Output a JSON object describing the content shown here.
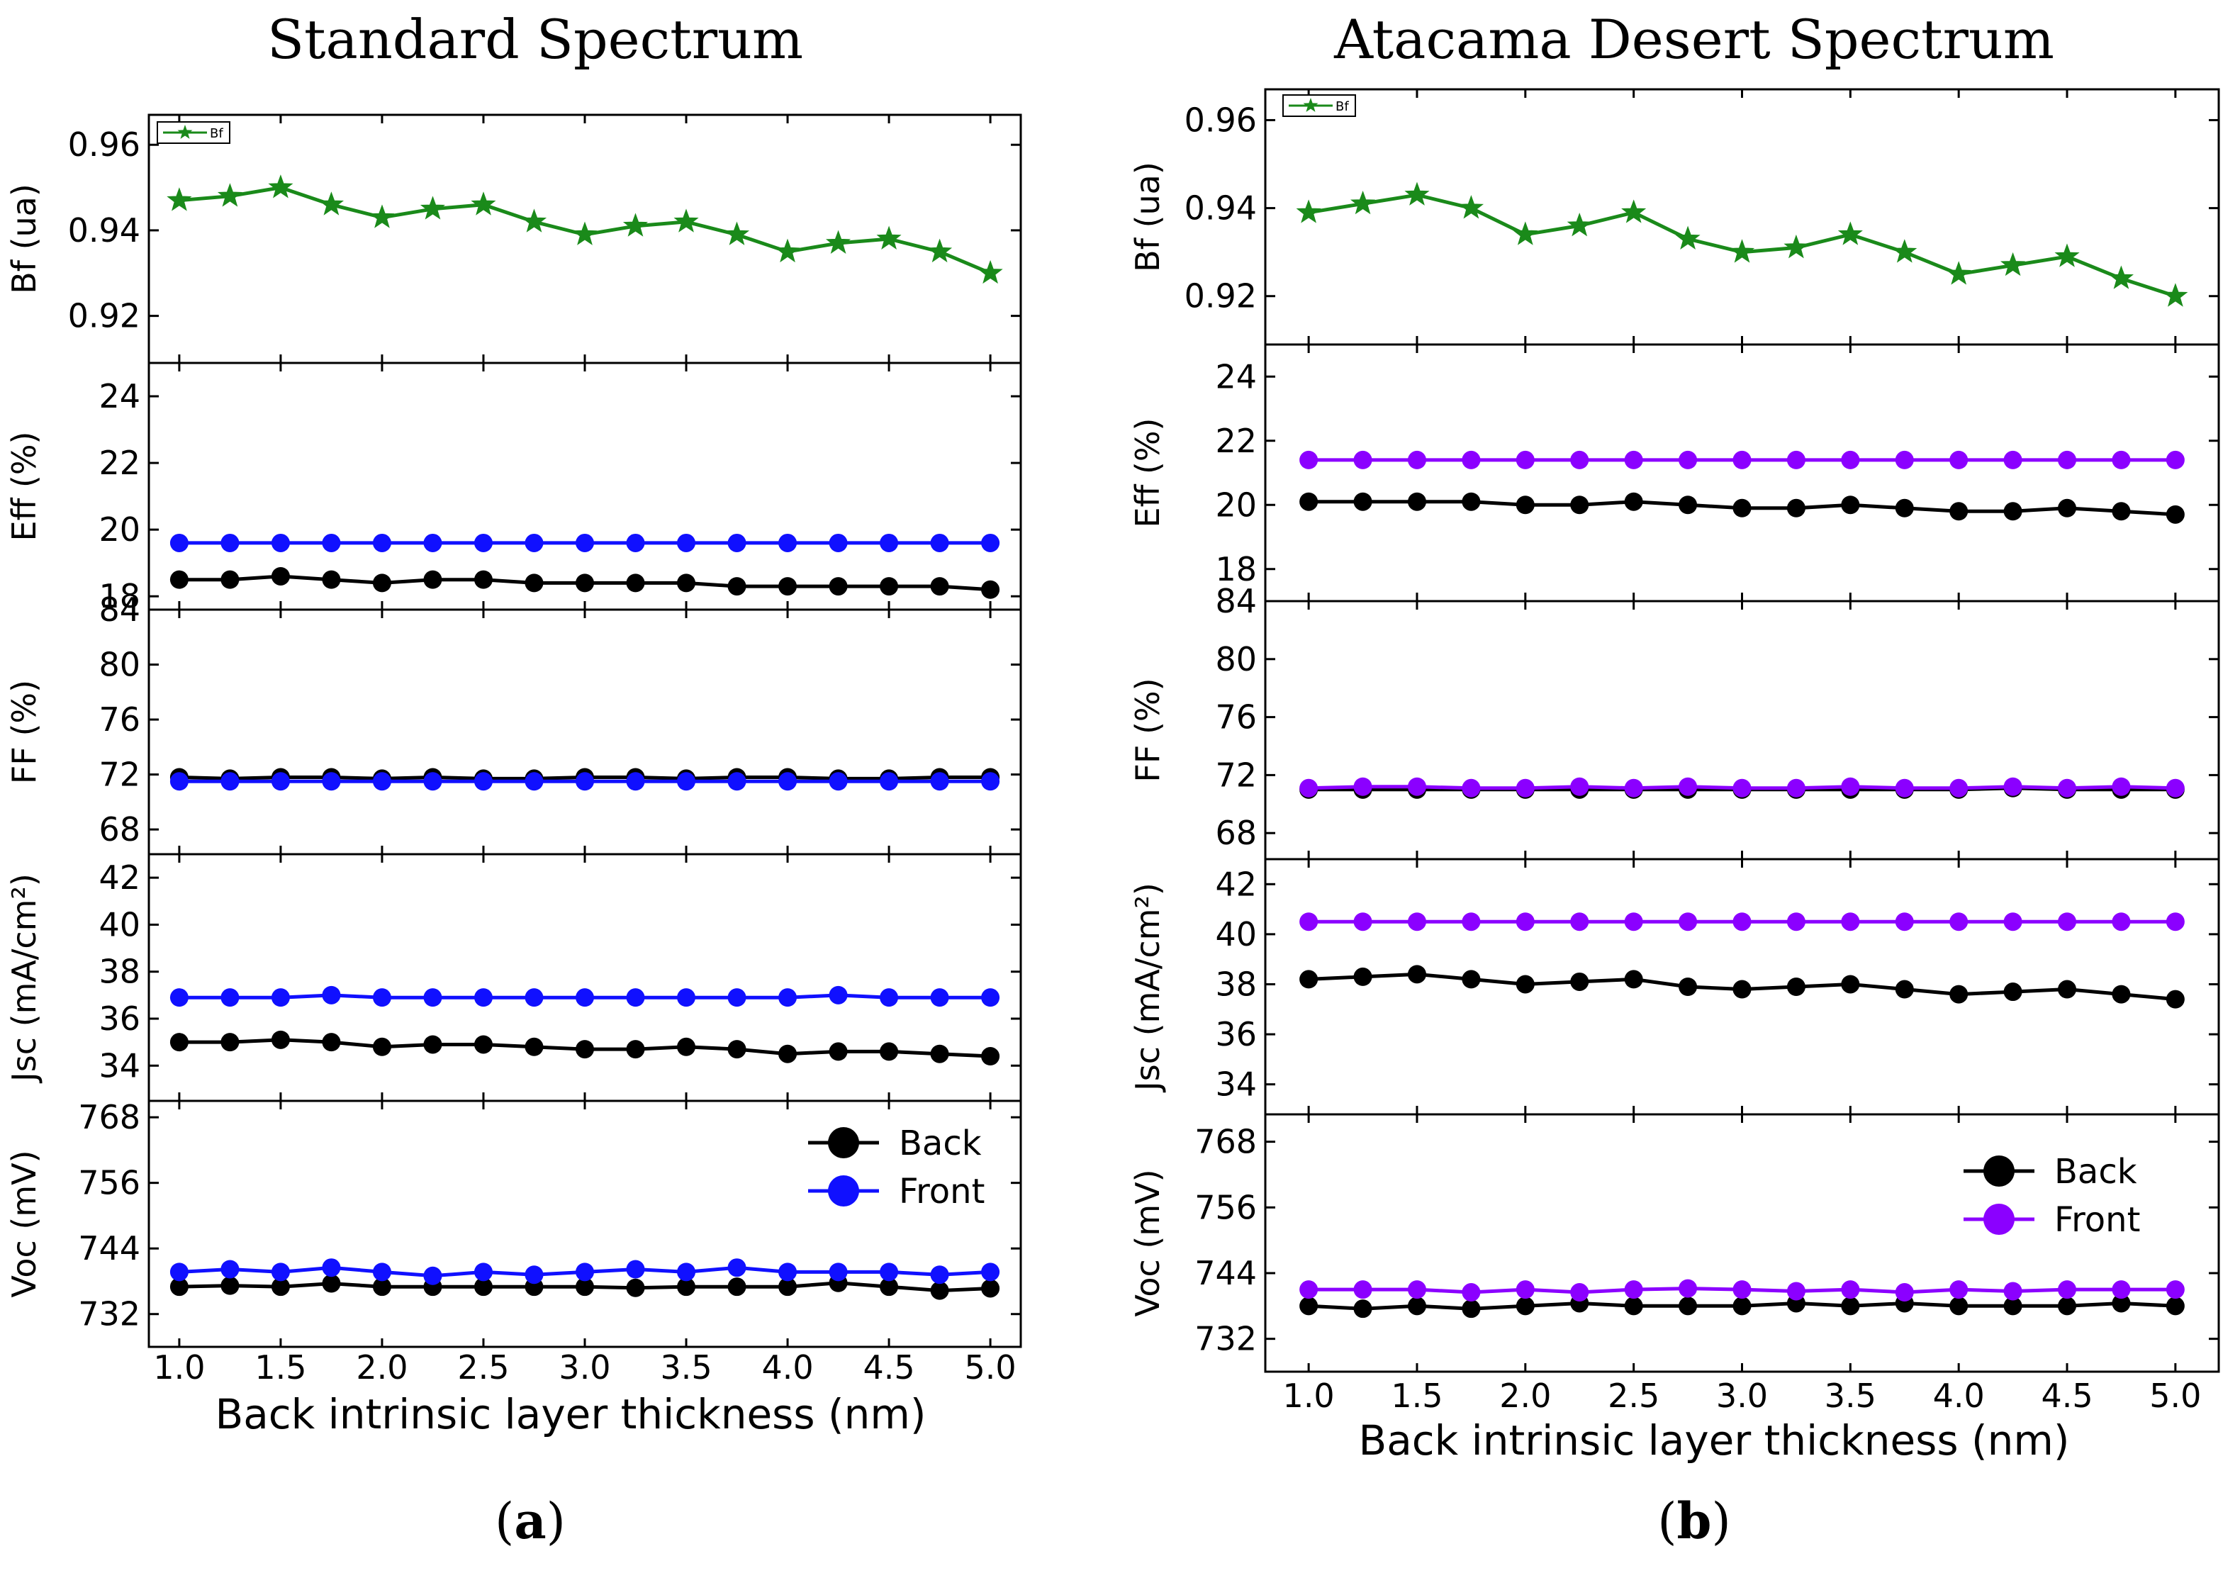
{
  "figure": {
    "captions": [
      "(a)",
      "(b)"
    ]
  },
  "chart_data": [
    {
      "type": "line",
      "title": "Standard Spectrum",
      "caption": "(a)",
      "xlabel": "Back intrinsic layer thickness (nm)",
      "x": [
        1.0,
        1.25,
        1.5,
        1.75,
        2.0,
        2.25,
        2.5,
        2.75,
        3.0,
        3.25,
        3.5,
        3.75,
        4.0,
        4.25,
        4.5,
        4.75,
        5.0
      ],
      "xlim": [
        0.85,
        5.15
      ],
      "xticks": [
        "1.0",
        "1.5",
        "2.0",
        "2.5",
        "3.0",
        "3.5",
        "4.0",
        "4.5",
        "5.0"
      ],
      "panels": [
        {
          "ylabel": "Bf (ua)",
          "ylim": [
            0.909,
            0.967
          ],
          "yticks": [
            "0.92",
            "0.94",
            "0.96"
          ],
          "legend": "top-left",
          "series": [
            {
              "name": "Bf",
              "color": "#1a8a1a",
              "marker": "star",
              "values": [
                0.947,
                0.948,
                0.95,
                0.946,
                0.943,
                0.945,
                0.946,
                0.942,
                0.939,
                0.941,
                0.942,
                0.939,
                0.935,
                0.937,
                0.938,
                0.935,
                0.93
              ]
            }
          ]
        },
        {
          "ylabel": "Eff (%)",
          "ylim": [
            17.6,
            25.0
          ],
          "yticks": [
            "18",
            "20",
            "22",
            "24"
          ],
          "series": [
            {
              "name": "Back",
              "color": "#000000",
              "marker": "circle",
              "values": [
                18.5,
                18.5,
                18.6,
                18.5,
                18.4,
                18.5,
                18.5,
                18.4,
                18.4,
                18.4,
                18.4,
                18.3,
                18.3,
                18.3,
                18.3,
                18.3,
                18.2
              ]
            },
            {
              "name": "Front",
              "color": "#1010ff",
              "marker": "circle",
              "values": [
                19.6,
                19.6,
                19.6,
                19.6,
                19.6,
                19.6,
                19.6,
                19.6,
                19.6,
                19.6,
                19.6,
                19.6,
                19.6,
                19.6,
                19.6,
                19.6,
                19.6
              ]
            }
          ]
        },
        {
          "ylabel": "FF (%)",
          "ylim": [
            66.2,
            84.0
          ],
          "yticks": [
            "68",
            "72",
            "76",
            "80",
            "84"
          ],
          "series": [
            {
              "name": "Back",
              "color": "#000000",
              "marker": "circle",
              "values": [
                71.8,
                71.7,
                71.8,
                71.8,
                71.7,
                71.8,
                71.7,
                71.7,
                71.8,
                71.8,
                71.7,
                71.8,
                71.8,
                71.7,
                71.7,
                71.8,
                71.8
              ]
            },
            {
              "name": "Front",
              "color": "#1010ff",
              "marker": "circle",
              "values": [
                71.5,
                71.5,
                71.5,
                71.5,
                71.5,
                71.5,
                71.5,
                71.5,
                71.5,
                71.5,
                71.5,
                71.5,
                71.5,
                71.5,
                71.5,
                71.5,
                71.5
              ]
            }
          ]
        },
        {
          "ylabel": "Jsc (mA/cm²)",
          "ylim": [
            32.5,
            43.0
          ],
          "yticks": [
            "34",
            "36",
            "38",
            "40",
            "42"
          ],
          "series": [
            {
              "name": "Back",
              "color": "#000000",
              "marker": "circle",
              "values": [
                35.0,
                35.0,
                35.1,
                35.0,
                34.8,
                34.9,
                34.9,
                34.8,
                34.7,
                34.7,
                34.8,
                34.7,
                34.5,
                34.6,
                34.6,
                34.5,
                34.4
              ]
            },
            {
              "name": "Front",
              "color": "#1010ff",
              "marker": "circle",
              "values": [
                36.9,
                36.9,
                36.9,
                37.0,
                36.9,
                36.9,
                36.9,
                36.9,
                36.9,
                36.9,
                36.9,
                36.9,
                36.9,
                37.0,
                36.9,
                36.9,
                36.9
              ]
            }
          ]
        },
        {
          "ylabel": "Voc (mV)",
          "ylim": [
            726.0,
            771.0
          ],
          "yticks": [
            "732",
            "744",
            "756",
            "768"
          ],
          "legend": "top-right",
          "series": [
            {
              "name": "Back",
              "color": "#000000",
              "marker": "circle",
              "values": [
                737.0,
                737.2,
                737.0,
                737.6,
                737.0,
                737.0,
                737.0,
                737.0,
                737.0,
                736.8,
                737.0,
                737.0,
                737.0,
                737.7,
                737.0,
                736.3,
                736.7
              ]
            },
            {
              "name": "Front",
              "color": "#1010ff",
              "marker": "circle",
              "values": [
                739.7,
                740.2,
                739.7,
                740.5,
                739.7,
                739.0,
                739.7,
                739.2,
                739.7,
                740.2,
                739.7,
                740.5,
                739.7,
                739.7,
                739.7,
                739.2,
                739.7
              ]
            }
          ]
        }
      ]
    },
    {
      "type": "line",
      "title": "Atacama Desert Spectrum",
      "caption": "(b)",
      "xlabel": "Back intrinsic layer thickness (nm)",
      "x": [
        1.0,
        1.25,
        1.5,
        1.75,
        2.0,
        2.25,
        2.5,
        2.75,
        3.0,
        3.25,
        3.5,
        3.75,
        4.0,
        4.25,
        4.5,
        4.75,
        5.0
      ],
      "xlim": [
        0.8,
        5.2
      ],
      "xticks": [
        "1.0",
        "1.5",
        "2.0",
        "2.5",
        "3.0",
        "3.5",
        "4.0",
        "4.5",
        "5.0"
      ],
      "panels": [
        {
          "ylabel": "Bf (ua)",
          "ylim": [
            0.909,
            0.967
          ],
          "yticks": [
            "0.92",
            "0.94",
            "0.96"
          ],
          "legend": "top-left",
          "series": [
            {
              "name": "Bf",
              "color": "#1a8a1a",
              "marker": "star",
              "values": [
                0.939,
                0.941,
                0.943,
                0.94,
                0.934,
                0.936,
                0.939,
                0.933,
                0.93,
                0.931,
                0.934,
                0.93,
                0.925,
                0.927,
                0.929,
                0.924,
                0.92
              ]
            }
          ]
        },
        {
          "ylabel": "Eff (%)",
          "ylim": [
            17.0,
            25.0
          ],
          "yticks": [
            "18",
            "20",
            "22",
            "24"
          ],
          "series": [
            {
              "name": "Back",
              "color": "#000000",
              "marker": "circle",
              "values": [
                20.1,
                20.1,
                20.1,
                20.1,
                20.0,
                20.0,
                20.1,
                20.0,
                19.9,
                19.9,
                20.0,
                19.9,
                19.8,
                19.8,
                19.9,
                19.8,
                19.7
              ]
            },
            {
              "name": "Front",
              "color": "#8b00ff",
              "marker": "circle",
              "values": [
                21.4,
                21.4,
                21.4,
                21.4,
                21.4,
                21.4,
                21.4,
                21.4,
                21.4,
                21.4,
                21.4,
                21.4,
                21.4,
                21.4,
                21.4,
                21.4,
                21.4
              ]
            }
          ]
        },
        {
          "ylabel": "FF (%)",
          "ylim": [
            66.2,
            84.0
          ],
          "yticks": [
            "68",
            "72",
            "76",
            "80",
            "84"
          ],
          "series": [
            {
              "name": "Back",
              "color": "#000000",
              "marker": "circle",
              "values": [
                71.0,
                71.0,
                71.0,
                71.0,
                71.0,
                71.0,
                71.0,
                71.0,
                71.0,
                71.0,
                71.0,
                71.0,
                71.0,
                71.1,
                71.0,
                71.0,
                71.0
              ]
            },
            {
              "name": "Front",
              "color": "#8b00ff",
              "marker": "circle",
              "values": [
                71.1,
                71.2,
                71.2,
                71.1,
                71.1,
                71.2,
                71.1,
                71.2,
                71.1,
                71.1,
                71.2,
                71.1,
                71.1,
                71.2,
                71.1,
                71.2,
                71.1
              ]
            }
          ]
        },
        {
          "ylabel": "Jsc (mA/cm²)",
          "ylim": [
            32.8,
            43.0
          ],
          "yticks": [
            "34",
            "36",
            "38",
            "40",
            "42"
          ],
          "series": [
            {
              "name": "Back",
              "color": "#000000",
              "marker": "circle",
              "values": [
                38.2,
                38.3,
                38.4,
                38.2,
                38.0,
                38.1,
                38.2,
                37.9,
                37.8,
                37.9,
                38.0,
                37.8,
                37.6,
                37.7,
                37.8,
                37.6,
                37.4
              ]
            },
            {
              "name": "Front",
              "color": "#8b00ff",
              "marker": "circle",
              "values": [
                40.5,
                40.5,
                40.5,
                40.5,
                40.5,
                40.5,
                40.5,
                40.5,
                40.5,
                40.5,
                40.5,
                40.5,
                40.5,
                40.5,
                40.5,
                40.5,
                40.5
              ]
            }
          ]
        },
        {
          "ylabel": "Voc (mV)",
          "ylim": [
            726.0,
            773.0
          ],
          "yticks": [
            "732",
            "744",
            "756",
            "768"
          ],
          "legend": "top-right",
          "series": [
            {
              "name": "Back",
              "color": "#000000",
              "marker": "circle",
              "values": [
                738.0,
                737.5,
                738.0,
                737.5,
                738.0,
                738.5,
                738.0,
                738.0,
                738.0,
                738.5,
                738.0,
                738.5,
                738.0,
                738.0,
                738.0,
                738.5,
                738.0
              ]
            },
            {
              "name": "Front",
              "color": "#8b00ff",
              "marker": "circle",
              "values": [
                741.0,
                741.0,
                741.0,
                740.5,
                741.0,
                740.5,
                741.0,
                741.2,
                741.0,
                740.7,
                741.0,
                740.5,
                741.0,
                740.7,
                741.0,
                741.0,
                741.0
              ]
            }
          ]
        }
      ]
    }
  ]
}
